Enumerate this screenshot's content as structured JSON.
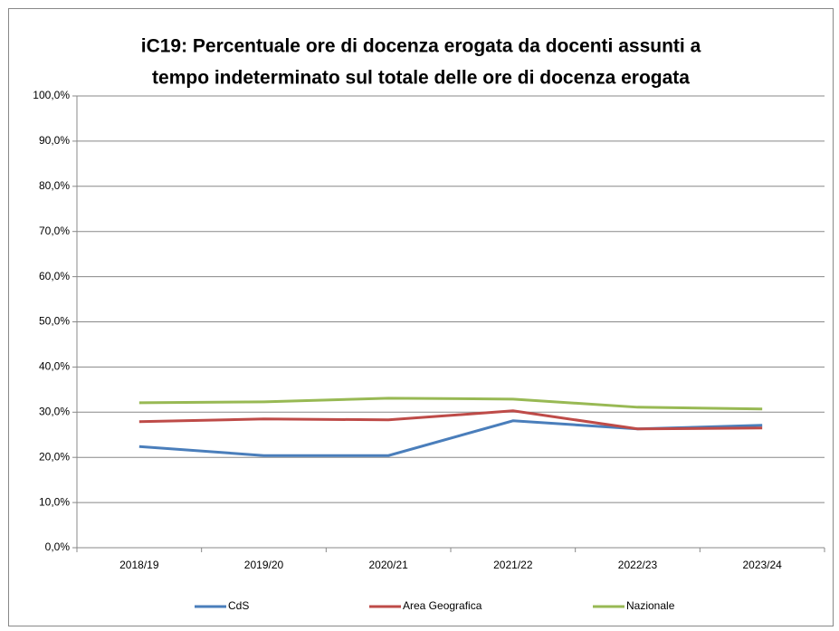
{
  "chart_data": {
    "type": "line",
    "title": [
      "iC19: Percentuale ore di docenza erogata da docenti assunti a",
      "tempo indeterminato sul totale delle ore di docenza erogata"
    ],
    "categories": [
      "2018/19",
      "2019/20",
      "2020/21",
      "2021/22",
      "2022/23",
      "2023/24"
    ],
    "series": [
      {
        "name": "CdS",
        "color": "#4a7ebb",
        "values": [
          22.4,
          20.4,
          20.4,
          28.1,
          26.3,
          27.1
        ]
      },
      {
        "name": "Area Geografica",
        "color": "#be4b48",
        "values": [
          27.9,
          28.5,
          28.3,
          30.3,
          26.3,
          26.5
        ]
      },
      {
        "name": "Nazionale",
        "color": "#98b954",
        "values": [
          32.1,
          32.3,
          33.1,
          32.9,
          31.1,
          30.7
        ]
      }
    ],
    "ylim": [
      0,
      100
    ],
    "yticks": [
      {
        "value": 0,
        "label": "0,0%"
      },
      {
        "value": 10,
        "label": "10,0%"
      },
      {
        "value": 20,
        "label": "20,0%"
      },
      {
        "value": 30,
        "label": "30,0%"
      },
      {
        "value": 40,
        "label": "40,0%"
      },
      {
        "value": 50,
        "label": "50,0%"
      },
      {
        "value": 60,
        "label": "60,0%"
      },
      {
        "value": 70,
        "label": "70,0%"
      },
      {
        "value": 80,
        "label": "80,0%"
      },
      {
        "value": 90,
        "label": "90,0%"
      },
      {
        "value": 100,
        "label": "100,0%"
      }
    ],
    "grid": true,
    "legend": "bottom"
  }
}
